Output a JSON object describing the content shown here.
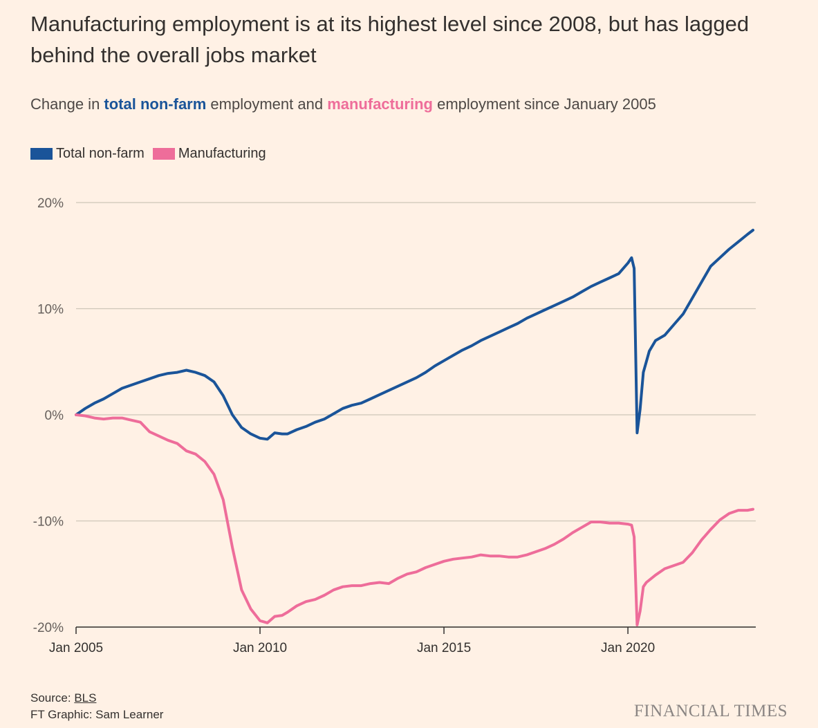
{
  "header": {
    "title": "Manufacturing employment is at its highest level since 2008, but has lagged behind the overall jobs market",
    "subtitle_pre": "Change in ",
    "subtitle_s1": "total non-farm",
    "subtitle_mid": " employment and ",
    "subtitle_s2": "manufacturing",
    "subtitle_post": " employment since January 2005"
  },
  "legend": {
    "items": [
      {
        "label": "Total non-farm",
        "color": "#1A5499"
      },
      {
        "label": "Manufacturing",
        "color": "#EE6D9A"
      }
    ]
  },
  "chart_data": {
    "type": "line",
    "title": "Manufacturing employment is at its highest level since 2008, but has lagged behind the overall jobs market",
    "ylabel": "",
    "xlabel": "",
    "ylim": [
      -20,
      20
    ],
    "xlim": [
      2005.0,
      2023.4
    ],
    "y_ticks": [
      20,
      10,
      0,
      -10,
      -20
    ],
    "y_tick_labels": [
      "20%",
      "10%",
      "0%",
      "-10%",
      "-20%"
    ],
    "x_ticks": [
      2005,
      2010,
      2015,
      2020
    ],
    "x_tick_labels": [
      "Jan 2005",
      "Jan 2010",
      "Jan 2015",
      "Jan 2020"
    ],
    "grid": true,
    "legend_position": "top-left",
    "series": [
      {
        "name": "Total non-farm",
        "color": "#1A5499",
        "points": [
          [
            2005.0,
            0.0
          ],
          [
            2005.25,
            0.6
          ],
          [
            2005.5,
            1.1
          ],
          [
            2005.75,
            1.5
          ],
          [
            2006.0,
            2.0
          ],
          [
            2006.25,
            2.5
          ],
          [
            2006.5,
            2.8
          ],
          [
            2006.75,
            3.1
          ],
          [
            2007.0,
            3.4
          ],
          [
            2007.25,
            3.7
          ],
          [
            2007.5,
            3.9
          ],
          [
            2007.75,
            4.0
          ],
          [
            2008.0,
            4.2
          ],
          [
            2008.25,
            4.0
          ],
          [
            2008.5,
            3.7
          ],
          [
            2008.75,
            3.1
          ],
          [
            2009.0,
            1.8
          ],
          [
            2009.25,
            0.0
          ],
          [
            2009.5,
            -1.2
          ],
          [
            2009.75,
            -1.8
          ],
          [
            2010.0,
            -2.2
          ],
          [
            2010.2,
            -2.3
          ],
          [
            2010.4,
            -1.7
          ],
          [
            2010.6,
            -1.8
          ],
          [
            2010.75,
            -1.8
          ],
          [
            2011.0,
            -1.4
          ],
          [
            2011.25,
            -1.1
          ],
          [
            2011.5,
            -0.7
          ],
          [
            2011.75,
            -0.4
          ],
          [
            2012.0,
            0.1
          ],
          [
            2012.25,
            0.6
          ],
          [
            2012.5,
            0.9
          ],
          [
            2012.75,
            1.1
          ],
          [
            2013.0,
            1.5
          ],
          [
            2013.25,
            1.9
          ],
          [
            2013.5,
            2.3
          ],
          [
            2013.75,
            2.7
          ],
          [
            2014.0,
            3.1
          ],
          [
            2014.25,
            3.5
          ],
          [
            2014.5,
            4.0
          ],
          [
            2014.75,
            4.6
          ],
          [
            2015.0,
            5.1
          ],
          [
            2015.25,
            5.6
          ],
          [
            2015.5,
            6.1
          ],
          [
            2015.75,
            6.5
          ],
          [
            2016.0,
            7.0
          ],
          [
            2016.25,
            7.4
          ],
          [
            2016.5,
            7.8
          ],
          [
            2016.75,
            8.2
          ],
          [
            2017.0,
            8.6
          ],
          [
            2017.25,
            9.1
          ],
          [
            2017.5,
            9.5
          ],
          [
            2017.75,
            9.9
          ],
          [
            2018.0,
            10.3
          ],
          [
            2018.25,
            10.7
          ],
          [
            2018.5,
            11.1
          ],
          [
            2018.75,
            11.6
          ],
          [
            2019.0,
            12.1
          ],
          [
            2019.25,
            12.5
          ],
          [
            2019.5,
            12.9
          ],
          [
            2019.75,
            13.3
          ],
          [
            2020.0,
            14.3
          ],
          [
            2020.1,
            14.8
          ],
          [
            2020.17,
            13.8
          ],
          [
            2020.25,
            -1.7
          ],
          [
            2020.33,
            0.5
          ],
          [
            2020.42,
            4.0
          ],
          [
            2020.5,
            5.0
          ],
          [
            2020.58,
            6.0
          ],
          [
            2020.75,
            7.0
          ],
          [
            2021.0,
            7.5
          ],
          [
            2021.25,
            8.5
          ],
          [
            2021.5,
            9.5
          ],
          [
            2021.75,
            11.0
          ],
          [
            2022.0,
            12.5
          ],
          [
            2022.25,
            14.0
          ],
          [
            2022.5,
            14.8
          ],
          [
            2022.75,
            15.6
          ],
          [
            2023.0,
            16.3
          ],
          [
            2023.25,
            17.0
          ],
          [
            2023.4,
            17.4
          ]
        ]
      },
      {
        "name": "Manufacturing",
        "color": "#EE6D9A",
        "points": [
          [
            2005.0,
            0.0
          ],
          [
            2005.25,
            -0.1
          ],
          [
            2005.5,
            -0.3
          ],
          [
            2005.75,
            -0.4
          ],
          [
            2006.0,
            -0.3
          ],
          [
            2006.25,
            -0.3
          ],
          [
            2006.5,
            -0.5
          ],
          [
            2006.75,
            -0.7
          ],
          [
            2007.0,
            -1.6
          ],
          [
            2007.25,
            -2.0
          ],
          [
            2007.5,
            -2.4
          ],
          [
            2007.75,
            -2.7
          ],
          [
            2008.0,
            -3.4
          ],
          [
            2008.25,
            -3.7
          ],
          [
            2008.5,
            -4.4
          ],
          [
            2008.75,
            -5.6
          ],
          [
            2009.0,
            -8.0
          ],
          [
            2009.25,
            -12.5
          ],
          [
            2009.5,
            -16.5
          ],
          [
            2009.75,
            -18.3
          ],
          [
            2010.0,
            -19.4
          ],
          [
            2010.2,
            -19.6
          ],
          [
            2010.4,
            -19.0
          ],
          [
            2010.6,
            -18.9
          ],
          [
            2010.75,
            -18.6
          ],
          [
            2011.0,
            -18.0
          ],
          [
            2011.25,
            -17.6
          ],
          [
            2011.5,
            -17.4
          ],
          [
            2011.75,
            -17.0
          ],
          [
            2012.0,
            -16.5
          ],
          [
            2012.25,
            -16.2
          ],
          [
            2012.5,
            -16.1
          ],
          [
            2012.75,
            -16.1
          ],
          [
            2013.0,
            -15.9
          ],
          [
            2013.25,
            -15.8
          ],
          [
            2013.5,
            -15.9
          ],
          [
            2013.75,
            -15.4
          ],
          [
            2014.0,
            -15.0
          ],
          [
            2014.25,
            -14.8
          ],
          [
            2014.5,
            -14.4
          ],
          [
            2014.75,
            -14.1
          ],
          [
            2015.0,
            -13.8
          ],
          [
            2015.25,
            -13.6
          ],
          [
            2015.5,
            -13.5
          ],
          [
            2015.75,
            -13.4
          ],
          [
            2016.0,
            -13.2
          ],
          [
            2016.25,
            -13.3
          ],
          [
            2016.5,
            -13.3
          ],
          [
            2016.75,
            -13.4
          ],
          [
            2017.0,
            -13.4
          ],
          [
            2017.25,
            -13.2
          ],
          [
            2017.5,
            -12.9
          ],
          [
            2017.75,
            -12.6
          ],
          [
            2018.0,
            -12.2
          ],
          [
            2018.25,
            -11.7
          ],
          [
            2018.5,
            -11.1
          ],
          [
            2018.75,
            -10.6
          ],
          [
            2019.0,
            -10.1
          ],
          [
            2019.25,
            -10.1
          ],
          [
            2019.5,
            -10.2
          ],
          [
            2019.75,
            -10.2
          ],
          [
            2020.0,
            -10.3
          ],
          [
            2020.1,
            -10.4
          ],
          [
            2020.17,
            -11.5
          ],
          [
            2020.25,
            -19.8
          ],
          [
            2020.33,
            -18.5
          ],
          [
            2020.42,
            -16.2
          ],
          [
            2020.5,
            -15.8
          ],
          [
            2020.75,
            -15.1
          ],
          [
            2021.0,
            -14.5
          ],
          [
            2021.25,
            -14.2
          ],
          [
            2021.5,
            -13.9
          ],
          [
            2021.75,
            -13.0
          ],
          [
            2022.0,
            -11.8
          ],
          [
            2022.25,
            -10.8
          ],
          [
            2022.5,
            -9.9
          ],
          [
            2022.75,
            -9.3
          ],
          [
            2023.0,
            -9.0
          ],
          [
            2023.25,
            -9.0
          ],
          [
            2023.4,
            -8.9
          ]
        ]
      }
    ]
  },
  "footer": {
    "source_prefix": "Source: ",
    "source_link": "BLS",
    "credit": "FT Graphic: Sam Learner",
    "brand": "FINANCIAL TIMES"
  }
}
